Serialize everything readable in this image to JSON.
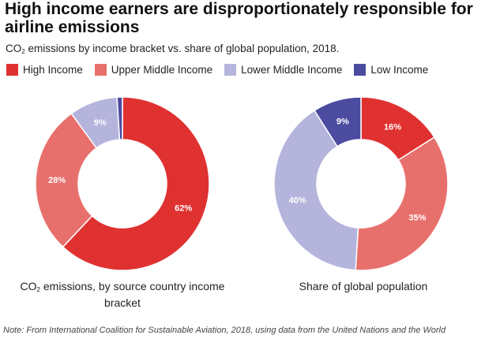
{
  "title": "High income earners are disproportionately responsible for airline emissions",
  "subtitle": {
    "prefix": "CO",
    "sub": "2",
    "suffix": " emissions by income bracket vs. share of global population, 2018."
  },
  "legend": [
    {
      "label": "High Income",
      "color": "#e03131"
    },
    {
      "label": "Upper Middle Income",
      "color": "#e8706c"
    },
    {
      "label": "Lower Middle Income",
      "color": "#b4b4dc"
    },
    {
      "label": "Low Income",
      "color": "#4b4ba0"
    }
  ],
  "chart_data": [
    {
      "type": "pie",
      "variant": "donut",
      "caption": {
        "prefix": "CO",
        "sub": "2",
        "line1": " emissions, by source country income",
        "line2": "bracket"
      },
      "categories": [
        "High Income",
        "Upper Middle Income",
        "Lower Middle Income",
        "Low Income"
      ],
      "values": [
        62,
        28,
        9,
        1
      ],
      "labels": [
        "62%",
        "28%",
        "9%",
        ""
      ],
      "colors": [
        "#e03131",
        "#e8706c",
        "#b4b4dc",
        "#4b4ba0"
      ]
    },
    {
      "type": "pie",
      "variant": "donut",
      "caption": {
        "line1": "Share of global population"
      },
      "categories": [
        "High Income",
        "Upper Middle Income",
        "Lower Middle Income",
        "Low Income"
      ],
      "values": [
        16,
        35,
        40,
        9
      ],
      "labels": [
        "16%",
        "35%",
        "40%",
        "9%"
      ],
      "colors": [
        "#e03131",
        "#e8706c",
        "#b4b4dc",
        "#4b4ba0"
      ]
    }
  ],
  "note": "Note: From International Coalition for Sustainable Aviation, 2018, using data from the United Nations and the World"
}
